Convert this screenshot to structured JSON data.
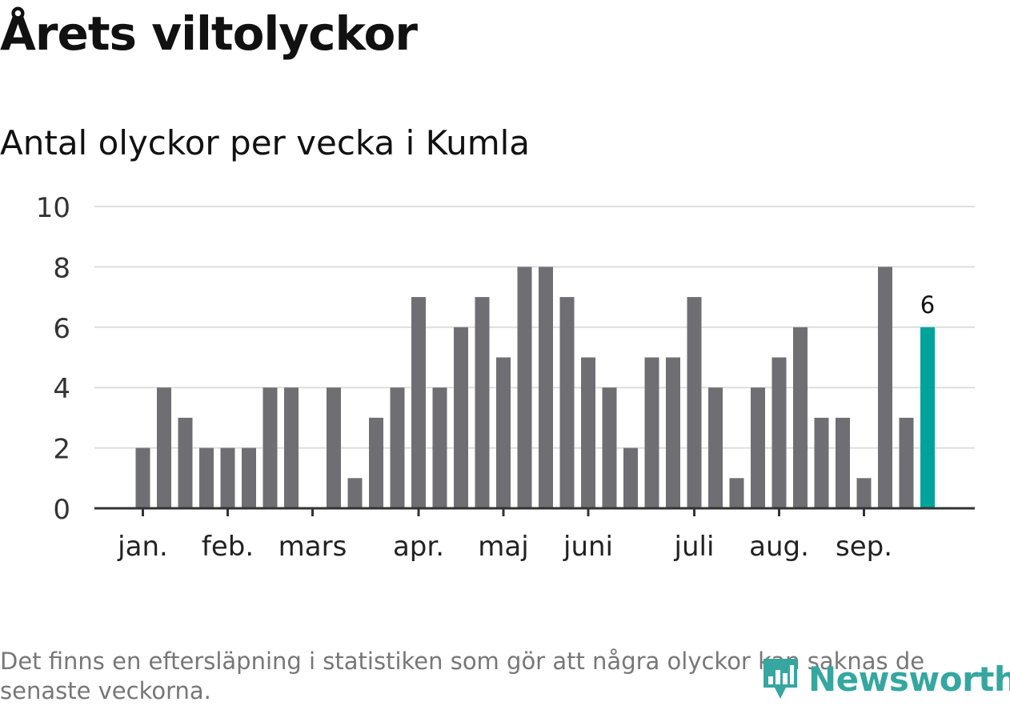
{
  "title": "Årets viltolyckor",
  "subtitle": "Antal olyckor per vecka i Kumla",
  "footnote": "Det finns en eftersläpning i statistiken som gör att några olyckor kan saknas de senaste veckorna.",
  "logo": {
    "text": "Newsworthy",
    "icon": "bar-chart-logo-icon",
    "color": "#36a6a0"
  },
  "chart_data": {
    "type": "bar",
    "title": "Årets viltolyckor",
    "subtitle": "Antal olyckor per vecka i Kumla",
    "xlabel": "",
    "ylabel": "",
    "ylim": [
      0,
      10
    ],
    "yticks": [
      0,
      2,
      4,
      6,
      8,
      10
    ],
    "grid": true,
    "month_labels": [
      {
        "label": "jan.",
        "at_week": 1
      },
      {
        "label": "feb.",
        "at_week": 5
      },
      {
        "label": "mars",
        "at_week": 9
      },
      {
        "label": "apr.",
        "at_week": 14
      },
      {
        "label": "maj",
        "at_week": 18
      },
      {
        "label": "juni",
        "at_week": 22
      },
      {
        "label": "juli",
        "at_week": 27
      },
      {
        "label": "aug.",
        "at_week": 31
      },
      {
        "label": "sep.",
        "at_week": 35
      }
    ],
    "weeks": [
      1,
      2,
      3,
      4,
      5,
      6,
      7,
      8,
      9,
      10,
      11,
      12,
      13,
      14,
      15,
      16,
      17,
      18,
      19,
      20,
      21,
      22,
      23,
      24,
      25,
      26,
      27,
      28,
      29,
      30,
      31,
      32,
      33,
      34,
      35,
      36,
      37,
      38
    ],
    "values": [
      2,
      4,
      3,
      2,
      2,
      2,
      4,
      4,
      0,
      4,
      1,
      3,
      4,
      7,
      4,
      6,
      7,
      5,
      8,
      8,
      7,
      5,
      4,
      2,
      5,
      5,
      7,
      4,
      1,
      4,
      5,
      6,
      3,
      3,
      1,
      8,
      3,
      6
    ],
    "highlight_index": 37,
    "highlight_label": "6",
    "bar_color": "#6f6e73",
    "highlight_color": "#00a39a",
    "grid_color": "#dddddd",
    "axis_color": "#333333"
  }
}
